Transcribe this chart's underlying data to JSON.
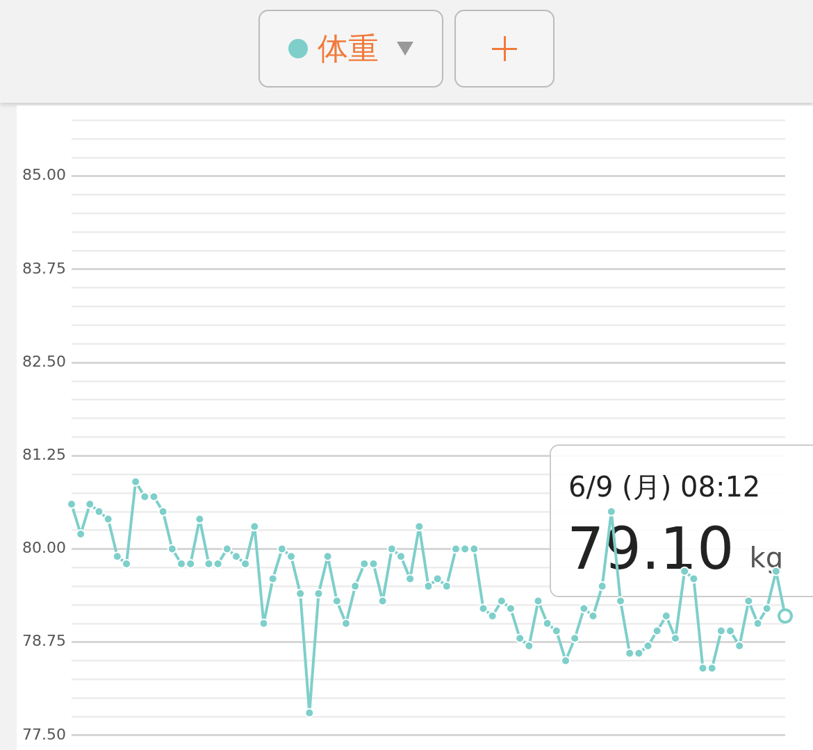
{
  "chart_data": {
    "type": "line",
    "categories": [
      null,
      null,
      null,
      null,
      null,
      null,
      null,
      null,
      null,
      null,
      null,
      null,
      null,
      null,
      null,
      null,
      null,
      null,
      null,
      null,
      null,
      null,
      null,
      null,
      null,
      null,
      null,
      null,
      null,
      null,
      null,
      null,
      null,
      null,
      null,
      null,
      null,
      null,
      null,
      null,
      null,
      null,
      null,
      null,
      null,
      null,
      null,
      null,
      null,
      null,
      null,
      null,
      null,
      null,
      null,
      null,
      null,
      null,
      null,
      null,
      null,
      null,
      null,
      null,
      null,
      null,
      null,
      null,
      null,
      null,
      null,
      null,
      null,
      null,
      null,
      null,
      null,
      null,
      null
    ],
    "series": [
      {
        "name": "体重",
        "color": "#7ecfca",
        "values": [
          80.6,
          80.2,
          80.6,
          80.5,
          80.4,
          79.9,
          79.8,
          80.9,
          80.7,
          80.7,
          80.5,
          80.0,
          79.8,
          79.8,
          80.4,
          79.8,
          79.8,
          80.0,
          79.9,
          79.8,
          80.3,
          79.0,
          79.6,
          80.0,
          79.9,
          79.4,
          77.8,
          79.4,
          79.9,
          79.3,
          79.0,
          79.5,
          79.8,
          79.8,
          79.3,
          80.0,
          79.9,
          79.6,
          80.3,
          79.5,
          79.6,
          79.5,
          80.0,
          80.0,
          80.0,
          79.2,
          79.1,
          79.3,
          79.2,
          78.8,
          78.7,
          79.3,
          79.0,
          78.9,
          78.5,
          78.8,
          79.2,
          79.1,
          79.5,
          80.5,
          79.3,
          78.6,
          78.6,
          78.7,
          78.9,
          79.1,
          78.8,
          79.7,
          79.6,
          78.4,
          78.4,
          78.9,
          78.9,
          78.7,
          79.3,
          79.0,
          79.2,
          79.7,
          79.1
        ]
      }
    ],
    "ylim": [
      77.5,
      85.75
    ],
    "yticks": [
      {
        "value": 77.5,
        "label": "77.50"
      },
      {
        "value": 77.75,
        "label": null
      },
      {
        "value": 78,
        "label": null
      },
      {
        "value": 78.25,
        "label": null
      },
      {
        "value": 78.5,
        "label": null
      },
      {
        "value": 78.75,
        "label": "78.75"
      },
      {
        "value": 79,
        "label": null
      },
      {
        "value": 79.25,
        "label": null
      },
      {
        "value": 79.5,
        "label": null
      },
      {
        "value": 79.75,
        "label": null
      },
      {
        "value": 80,
        "label": "80.00"
      },
      {
        "value": 80.25,
        "label": null
      },
      {
        "value": 80.5,
        "label": null
      },
      {
        "value": 80.75,
        "label": null
      },
      {
        "value": 81,
        "label": null
      },
      {
        "value": 81.25,
        "label": "81.25"
      },
      {
        "value": 81.5,
        "label": null
      },
      {
        "value": 81.75,
        "label": null
      },
      {
        "value": 82,
        "label": null
      },
      {
        "value": 82.25,
        "label": null
      },
      {
        "value": 82.5,
        "label": "82.50"
      },
      {
        "value": 82.75,
        "label": null
      },
      {
        "value": 83,
        "label": null
      },
      {
        "value": 83.25,
        "label": null
      },
      {
        "value": 83.5,
        "label": null
      },
      {
        "value": 83.75,
        "label": "83.75"
      },
      {
        "value": 84,
        "label": null
      },
      {
        "value": 84.25,
        "label": null
      },
      {
        "value": 84.5,
        "label": null
      },
      {
        "value": 84.75,
        "label": null
      },
      {
        "value": 85,
        "label": "85.00"
      },
      {
        "value": 85.25,
        "label": null
      },
      {
        "value": 85.5,
        "label": null
      },
      {
        "value": 85.75,
        "label": null
      }
    ],
    "grid": "y",
    "legend": "top",
    "tick_labels": "y",
    "marker": "circle",
    "line_style": "solid",
    "annotations": [
      "6/9 (月) 08:12",
      "79.10 kg"
    ]
  }
}
